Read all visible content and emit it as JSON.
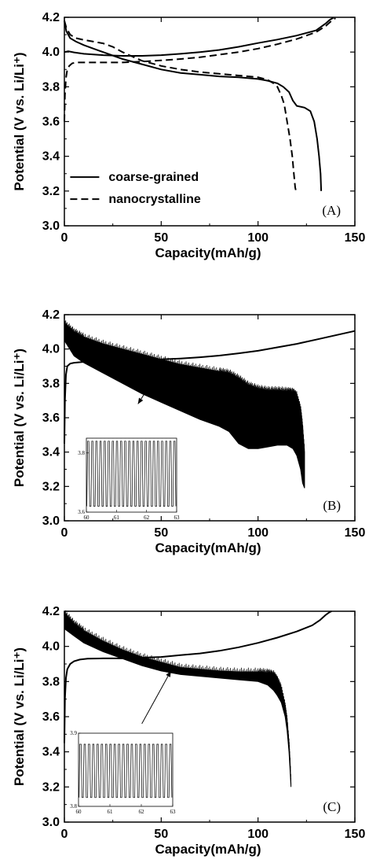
{
  "chart_data": [
    {
      "type": "line",
      "panel_label": "(A)",
      "xlabel": "Capacity(mAh/g)",
      "ylabel": "Potential (V vs. Li/Li⁺)",
      "xlim": [
        0,
        150
      ],
      "ylim": [
        3.0,
        4.2
      ],
      "xticks": [
        "0",
        "50",
        "100",
        "150"
      ],
      "yticks": [
        "3.0",
        "3.2",
        "3.4",
        "3.6",
        "3.8",
        "4.0",
        "4.2"
      ],
      "legend_position": "bottom-left",
      "series": [
        {
          "name": "coarse-grained",
          "style": "solid",
          "curves": [
            {
              "x": [
                0,
                2,
                5,
                10,
                20,
                30,
                40,
                50,
                60,
                70,
                80,
                90,
                100,
                110,
                120,
                130,
                135,
                137,
                139
              ],
              "y": [
                4.0,
                4.005,
                3.998,
                3.99,
                3.982,
                3.978,
                3.978,
                3.982,
                3.99,
                4.0,
                4.012,
                4.03,
                4.052,
                4.072,
                4.095,
                4.125,
                4.165,
                4.185,
                4.198
              ]
            },
            {
              "x": [
                0,
                1,
                3,
                6,
                10,
                15,
                20,
                30,
                40,
                50,
                60,
                70,
                80,
                90,
                100,
                105,
                110,
                113,
                116,
                118,
                120,
                124,
                127,
                129,
                130.5,
                131.5,
                132.3,
                132.6
              ],
              "y": [
                4.18,
                4.12,
                4.08,
                4.06,
                4.04,
                4.02,
                4.0,
                3.96,
                3.93,
                3.9,
                3.88,
                3.87,
                3.86,
                3.855,
                3.845,
                3.835,
                3.82,
                3.8,
                3.77,
                3.72,
                3.69,
                3.68,
                3.66,
                3.6,
                3.5,
                3.4,
                3.3,
                3.2
              ]
            }
          ]
        },
        {
          "name": "nanocrystalline",
          "style": "dashed",
          "curves": [
            {
              "x": [
                0,
                0.3,
                0.8,
                1.5,
                2.5,
                4,
                6,
                10,
                15,
                20,
                25,
                30,
                40,
                50,
                60,
                70,
                80,
                90,
                100,
                110,
                120,
                130,
                135,
                138,
                140
              ],
              "y": [
                3.6,
                3.75,
                3.85,
                3.9,
                3.92,
                3.935,
                3.94,
                3.94,
                3.94,
                3.94,
                3.94,
                3.94,
                3.945,
                3.952,
                3.96,
                3.97,
                3.985,
                4.0,
                4.02,
                4.045,
                4.075,
                4.115,
                4.15,
                4.18,
                4.195
              ]
            },
            {
              "x": [
                0,
                1,
                3,
                6,
                10,
                15,
                20,
                25,
                30,
                40,
                50,
                60,
                70,
                80,
                90,
                100,
                105,
                108,
                110,
                112,
                113.5,
                115,
                116.5,
                117.7,
                118.5,
                119.2,
                119.6
              ],
              "y": [
                4.18,
                4.14,
                4.1,
                4.08,
                4.07,
                4.06,
                4.05,
                4.03,
                4.0,
                3.95,
                3.92,
                3.9,
                3.885,
                3.875,
                3.865,
                3.855,
                3.84,
                3.82,
                3.8,
                3.75,
                3.7,
                3.6,
                3.5,
                3.4,
                3.3,
                3.22,
                3.2
              ]
            }
          ]
        }
      ]
    },
    {
      "type": "line",
      "panel_label": "(B)",
      "xlabel": "Capacity(mAh/g)",
      "ylabel": "Potential (V vs. Li/Li⁺)",
      "xlim": [
        0,
        150
      ],
      "ylim": [
        3.0,
        4.2
      ],
      "xticks": [
        "0",
        "50",
        "100",
        "150"
      ],
      "yticks": [
        "3.0",
        "3.2",
        "3.4",
        "3.6",
        "3.8",
        "4.0",
        "4.2"
      ],
      "charge": {
        "x": [
          0,
          0.3,
          0.8,
          1.5,
          3,
          5,
          10,
          20,
          30,
          40,
          50,
          60,
          70,
          80,
          90,
          100,
          110,
          120,
          130,
          140,
          150
        ],
        "y": [
          3.45,
          3.7,
          3.85,
          3.9,
          3.915,
          3.92,
          3.925,
          3.93,
          3.93,
          3.935,
          3.94,
          3.945,
          3.952,
          3.962,
          3.975,
          3.99,
          4.01,
          4.03,
          4.055,
          4.08,
          4.105
        ]
      },
      "oscillation_band": {
        "x": [
          0,
          5,
          10,
          20,
          30,
          40,
          50,
          60,
          70,
          80,
          85,
          90,
          95,
          100,
          105,
          110,
          115,
          118,
          120,
          122,
          123,
          124
        ],
        "upper": [
          4.15,
          4.1,
          4.07,
          4.03,
          4.0,
          3.97,
          3.94,
          3.91,
          3.89,
          3.87,
          3.86,
          3.83,
          3.79,
          3.77,
          3.76,
          3.76,
          3.755,
          3.75,
          3.73,
          3.65,
          3.55,
          3.4
        ],
        "lower": [
          4.05,
          3.96,
          3.92,
          3.86,
          3.8,
          3.74,
          3.69,
          3.64,
          3.59,
          3.55,
          3.52,
          3.45,
          3.42,
          3.42,
          3.43,
          3.44,
          3.44,
          3.42,
          3.38,
          3.3,
          3.22,
          3.19
        ]
      },
      "inset": {
        "xlim": [
          60,
          63
        ],
        "ylim": [
          3.6,
          3.85
        ],
        "xticks": [
          "60",
          "61",
          "62",
          "63"
        ],
        "yticks": [
          "3.6",
          "3.8"
        ],
        "pulses": 22,
        "level_high": 3.84,
        "level_low": 3.62,
        "pointer_from": [
          38,
          3.68
        ],
        "pointer_to": [
          48,
          3.86
        ]
      }
    },
    {
      "type": "line",
      "panel_label": "(C)",
      "xlabel": "Capacity(mAh/g)",
      "ylabel": "Potential (V vs. Li/Li⁺)",
      "xlim": [
        0,
        150
      ],
      "ylim": [
        3.0,
        4.2
      ],
      "xticks": [
        "0",
        "50",
        "100",
        "150"
      ],
      "yticks": [
        "3.0",
        "3.2",
        "3.4",
        "3.6",
        "3.8",
        "4.0",
        "4.2"
      ],
      "charge": {
        "x": [
          0,
          0.3,
          0.8,
          1.5,
          3,
          5,
          8,
          12,
          20,
          30,
          40,
          50,
          60,
          70,
          80,
          90,
          100,
          110,
          120,
          128,
          132,
          135,
          137,
          138
        ],
        "y": [
          3.45,
          3.7,
          3.82,
          3.87,
          3.9,
          3.915,
          3.925,
          3.93,
          3.932,
          3.932,
          3.936,
          3.94,
          3.95,
          3.96,
          3.975,
          3.995,
          4.02,
          4.05,
          4.085,
          4.12,
          4.15,
          4.18,
          4.195,
          4.2
        ]
      },
      "oscillation_band": {
        "x": [
          0,
          5,
          10,
          20,
          30,
          40,
          50,
          60,
          70,
          80,
          90,
          100,
          105,
          108,
          110,
          112,
          114,
          115,
          116,
          116.5,
          117
        ],
        "upper": [
          4.19,
          4.13,
          4.09,
          4.03,
          3.98,
          3.94,
          3.91,
          3.88,
          3.87,
          3.86,
          3.855,
          3.855,
          3.85,
          3.84,
          3.81,
          3.76,
          3.66,
          3.58,
          3.45,
          3.35,
          3.22
        ],
        "lower": [
          4.1,
          4.06,
          4.02,
          3.97,
          3.93,
          3.89,
          3.86,
          3.84,
          3.83,
          3.82,
          3.81,
          3.8,
          3.78,
          3.75,
          3.72,
          3.68,
          3.6,
          3.52,
          3.4,
          3.3,
          3.2
        ]
      },
      "inset": {
        "xlim": [
          60,
          63
        ],
        "ylim": [
          3.8,
          3.9
        ],
        "xticks": [
          "60",
          "61",
          "62",
          "63"
        ],
        "yticks": [
          "3.8",
          "3.9"
        ],
        "pulses": 22,
        "level_high": 3.885,
        "level_low": 3.812,
        "pointer_from": [
          55,
          3.86
        ],
        "pointer_to": [
          40,
          3.56
        ]
      }
    }
  ]
}
